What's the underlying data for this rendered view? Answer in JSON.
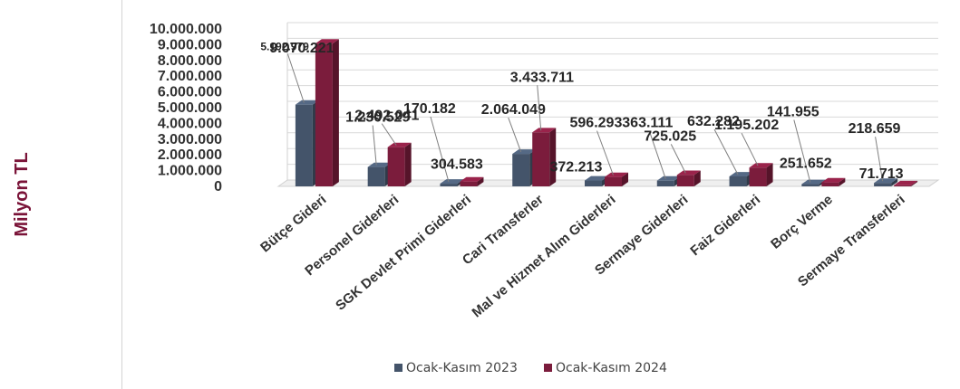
{
  "y_axis_title": "Milyon TL",
  "legend": [
    {
      "label": "Ocak-Kasım 2023",
      "color": "#44546a"
    },
    {
      "label": "Ocak-Kasım 2024",
      "color": "#7b1c3c"
    }
  ],
  "chart_data": {
    "type": "bar",
    "style": "3d-clustered-column",
    "ylabel": "Milyon TL",
    "ylim": [
      0,
      10000000
    ],
    "y_ticks": [
      "10.000.000",
      "9.000.000",
      "8.000.000",
      "7.000.000",
      "6.000.000",
      "5.000.000",
      "4.000.000",
      "3.000.000",
      "2.000.000",
      "1.000.000",
      "0"
    ],
    "grid": true,
    "legend_position": "bottom",
    "categories": [
      "Bütçe Gideri",
      "Personel Giderleri",
      "SGK Devlet Primi Giderleri",
      "Cari Transferler",
      "Mal ve Hizmet Alım Giderleri",
      "Sermaye Giderleri",
      "Faiz Giderleri",
      "Borç Verme",
      "Sermaye Transferleri"
    ],
    "series": [
      {
        "name": "Ocak-Kasım 2023",
        "color": "#44546a",
        "values": [
          5192979,
          1230529,
          170182,
          2064049,
          372213,
          363111,
          632282,
          141955,
          218659
        ],
        "labels": [
          "5.192.979",
          "1.230.529",
          "170.182",
          "2.064.049",
          "372.213",
          "363.111",
          "632.282",
          "141.955",
          "218.659"
        ]
      },
      {
        "name": "Ocak-Kasım 2024",
        "color": "#7b1c3c",
        "values": [
          9070221,
          2492041,
          304583,
          3433711,
          596293,
          725025,
          1195202,
          251652,
          71713
        ],
        "labels": [
          "9.070.221",
          "2.492.041",
          "304.583",
          "3.433.711",
          "596.293",
          "725.025",
          "1.195.202",
          "251.652",
          "71.713"
        ]
      }
    ]
  }
}
